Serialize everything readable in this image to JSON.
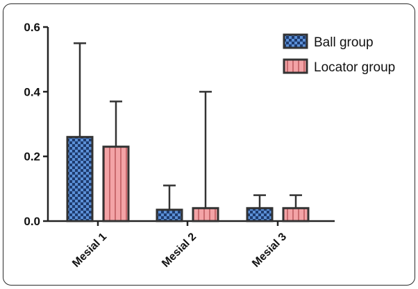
{
  "chart_data": {
    "type": "bar",
    "categories": [
      "Mesial 1",
      "Mesial 2",
      "Mesial 3"
    ],
    "series": [
      {
        "name": "Ball group",
        "values": [
          0.26,
          0.035,
          0.04
        ],
        "error_upper": [
          0.55,
          0.11,
          0.08
        ],
        "fill": "#5b8fd6",
        "pattern": "checkered"
      },
      {
        "name": "Locator group",
        "values": [
          0.23,
          0.04,
          0.04
        ],
        "error_upper": [
          0.37,
          0.4,
          0.08
        ],
        "fill": "#f3a3a6",
        "pattern": "vertical-stripes"
      }
    ],
    "ylim": [
      0,
      0.6
    ],
    "yticks": [
      "0.0",
      "0.2",
      "0.4",
      "0.6"
    ],
    "ytick_values": [
      0,
      0.2,
      0.4,
      0.6
    ],
    "xlabel": "",
    "ylabel": "",
    "title": "",
    "legend_position": "top-right",
    "grid": false,
    "colors": {
      "axis": "#222222",
      "bar_border": "#333333"
    }
  }
}
